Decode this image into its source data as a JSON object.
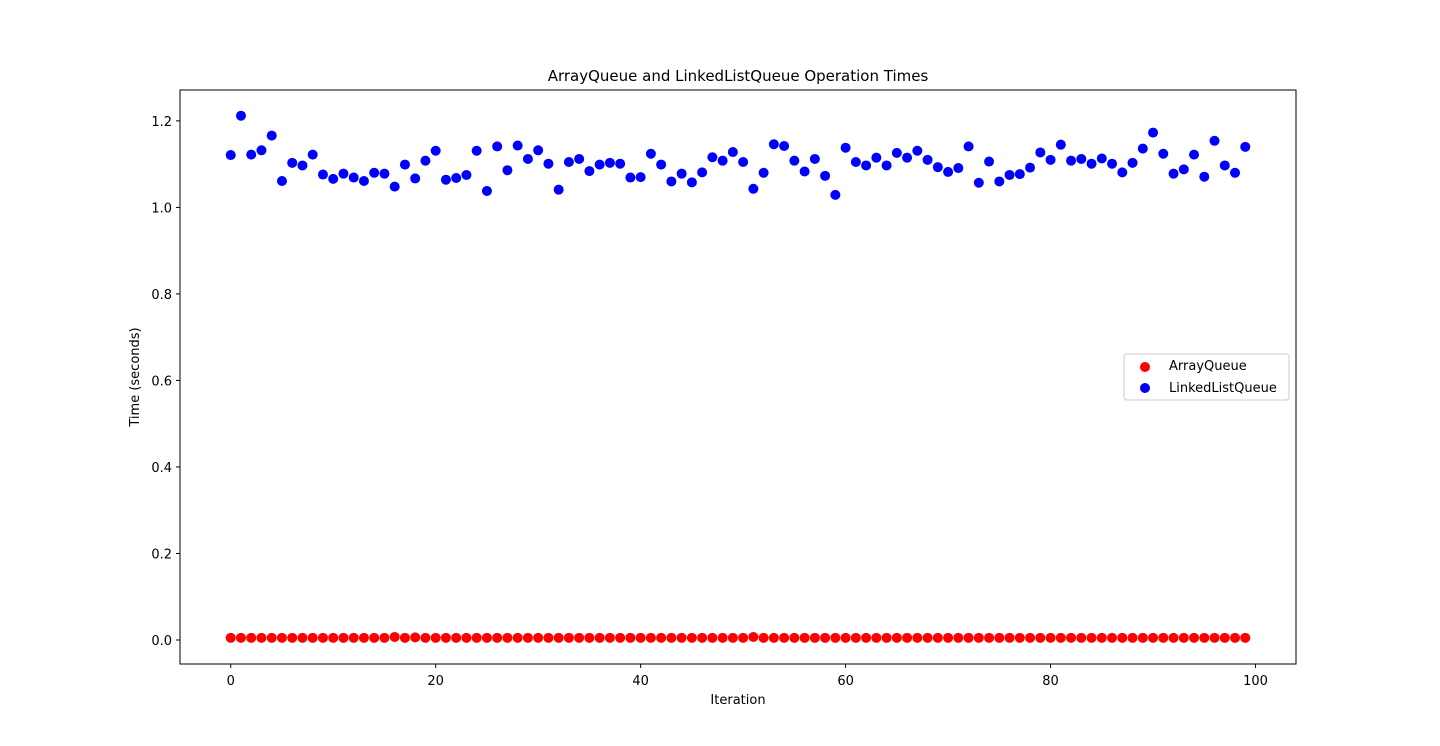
{
  "chart_data": {
    "type": "scatter",
    "title": "ArrayQueue and LinkedListQueue Operation Times",
    "xlabel": "Iteration",
    "ylabel": "Time (seconds)",
    "xlim": [
      -4.95,
      103.95
    ],
    "ylim": [
      -0.0555,
      1.2714
    ],
    "xticks": [
      0,
      20,
      40,
      60,
      80,
      100
    ],
    "xtick_labels": [
      "0",
      "20",
      "40",
      "60",
      "80",
      "100"
    ],
    "yticks": [
      0.0,
      0.2,
      0.4,
      0.6,
      0.8,
      1.0,
      1.2
    ],
    "ytick_labels": [
      "0.0",
      "0.2",
      "0.4",
      "0.6",
      "0.8",
      "1.0",
      "1.2"
    ],
    "grid": false,
    "legend_position": "center-right",
    "x": [
      0,
      1,
      2,
      3,
      4,
      5,
      6,
      7,
      8,
      9,
      10,
      11,
      12,
      13,
      14,
      15,
      16,
      17,
      18,
      19,
      20,
      21,
      22,
      23,
      24,
      25,
      26,
      27,
      28,
      29,
      30,
      31,
      32,
      33,
      34,
      35,
      36,
      37,
      38,
      39,
      40,
      41,
      42,
      43,
      44,
      45,
      46,
      47,
      48,
      49,
      50,
      51,
      52,
      53,
      54,
      55,
      56,
      57,
      58,
      59,
      60,
      61,
      62,
      63,
      64,
      65,
      66,
      67,
      68,
      69,
      70,
      71,
      72,
      73,
      74,
      75,
      76,
      77,
      78,
      79,
      80,
      81,
      82,
      83,
      84,
      85,
      86,
      87,
      88,
      89,
      90,
      91,
      92,
      93,
      94,
      95,
      96,
      97,
      98,
      99
    ],
    "series": [
      {
        "name": "ArrayQueue",
        "color": "#ff0000",
        "values": [
          0.005,
          0.005,
          0.005,
          0.005,
          0.005,
          0.005,
          0.005,
          0.005,
          0.005,
          0.005,
          0.005,
          0.005,
          0.005,
          0.005,
          0.005,
          0.005,
          0.007,
          0.005,
          0.006,
          0.005,
          0.005,
          0.005,
          0.005,
          0.005,
          0.005,
          0.005,
          0.005,
          0.005,
          0.005,
          0.005,
          0.005,
          0.005,
          0.005,
          0.005,
          0.005,
          0.005,
          0.005,
          0.005,
          0.005,
          0.005,
          0.005,
          0.005,
          0.005,
          0.005,
          0.005,
          0.005,
          0.005,
          0.005,
          0.005,
          0.005,
          0.005,
          0.007,
          0.005,
          0.005,
          0.005,
          0.005,
          0.005,
          0.005,
          0.005,
          0.005,
          0.005,
          0.005,
          0.005,
          0.005,
          0.005,
          0.005,
          0.005,
          0.005,
          0.005,
          0.005,
          0.005,
          0.005,
          0.005,
          0.005,
          0.005,
          0.005,
          0.005,
          0.005,
          0.005,
          0.005,
          0.005,
          0.005,
          0.005,
          0.005,
          0.005,
          0.005,
          0.005,
          0.005,
          0.005,
          0.005,
          0.005,
          0.005,
          0.005,
          0.005,
          0.005,
          0.005,
          0.005,
          0.005,
          0.005,
          0.005
        ]
      },
      {
        "name": "LinkedListQueue",
        "color": "#0000ff",
        "values": [
          1.121,
          1.212,
          1.122,
          1.132,
          1.166,
          1.061,
          1.103,
          1.097,
          1.122,
          1.076,
          1.066,
          1.078,
          1.069,
          1.061,
          1.08,
          1.078,
          1.048,
          1.099,
          1.067,
          1.108,
          1.131,
          1.064,
          1.068,
          1.075,
          1.131,
          1.038,
          1.141,
          1.086,
          1.143,
          1.112,
          1.132,
          1.101,
          1.041,
          1.105,
          1.112,
          1.084,
          1.099,
          1.103,
          1.101,
          1.069,
          1.07,
          1.124,
          1.099,
          1.06,
          1.078,
          1.058,
          1.081,
          1.116,
          1.108,
          1.128,
          1.105,
          1.043,
          1.08,
          1.146,
          1.142,
          1.108,
          1.083,
          1.112,
          1.073,
          1.029,
          1.138,
          1.105,
          1.097,
          1.115,
          1.097,
          1.126,
          1.115,
          1.131,
          1.11,
          1.093,
          1.082,
          1.091,
          1.141,
          1.057,
          1.106,
          1.06,
          1.075,
          1.077,
          1.092,
          1.127,
          1.11,
          1.145,
          1.108,
          1.112,
          1.101,
          1.113,
          1.101,
          1.081,
          1.103,
          1.136,
          1.173,
          1.124,
          1.078,
          1.088,
          1.122,
          1.071,
          1.154,
          1.097,
          1.08,
          1.14
        ]
      }
    ]
  }
}
